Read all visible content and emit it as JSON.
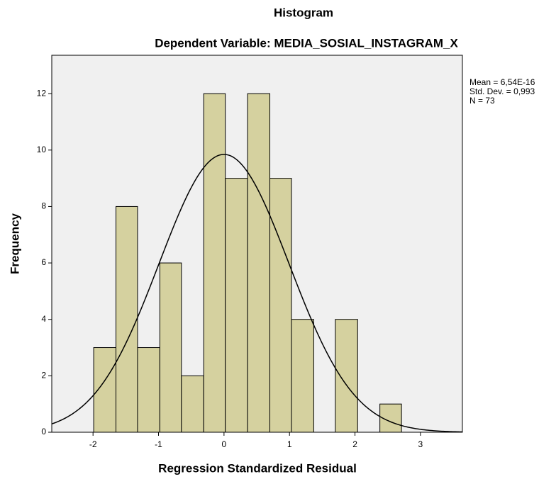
{
  "chart_data": {
    "type": "histogram",
    "title": "Histogram",
    "subtitle": "Dependent Variable: MEDIA_SOSIAL_INSTAGRAM_X",
    "x_label": "Regression Standardized Residual",
    "y_label": "Frequency",
    "bins": [
      -1.99,
      -1.65,
      -1.32,
      -0.98,
      -0.65,
      -0.31,
      0.02,
      0.36,
      0.7,
      1.03,
      1.37,
      1.7,
      2.04,
      2.38,
      2.71
    ],
    "values": [
      3,
      8,
      3,
      6,
      2,
      12,
      9,
      12,
      9,
      4,
      0,
      4,
      0,
      1
    ],
    "color": "#d5d19f",
    "xlim": [
      -2.63,
      3.64
    ],
    "xticks": [
      -2,
      -1,
      0,
      1,
      2,
      3
    ],
    "ylim": [
      0,
      13.36
    ],
    "yticks": [
      0,
      2,
      4,
      6,
      8,
      10,
      12
    ],
    "stats": {
      "mean": {
        "value": 6.54e-16,
        "label": "Mean = 6,54E-16"
      },
      "sd": {
        "value": 0.993,
        "label": "Std. Dev. = 0,993"
      },
      "n": {
        "value": 73,
        "label": "N = 73"
      }
    }
  }
}
